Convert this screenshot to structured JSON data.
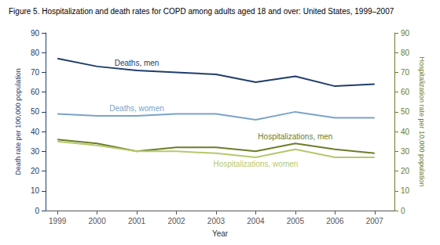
{
  "chart_data": {
    "type": "line",
    "title": "Figure 5. Hospitalization and death rates for COPD among adults aged 18 and over: United States, 1999–2007",
    "xlabel": "Year",
    "ylabel": "Death rate per 100,000 population",
    "y2label": "Hospitalization rate per 10,000 population",
    "x": [
      1999,
      2000,
      2001,
      2002,
      2003,
      2004,
      2005,
      2006,
      2007
    ],
    "xlim": [
      1998.7,
      2007.5
    ],
    "xticks": [
      1999,
      2000,
      2001,
      2002,
      2003,
      2004,
      2005,
      2006,
      2007
    ],
    "ylim": [
      0,
      90
    ],
    "yticks": [
      0,
      10,
      20,
      30,
      40,
      50,
      60,
      70,
      80,
      90
    ],
    "y2lim": [
      0,
      90
    ],
    "y2ticks": [
      0,
      10,
      20,
      30,
      40,
      50,
      60,
      70,
      80,
      90
    ],
    "grid": false,
    "series": [
      {
        "name": "Deaths, men",
        "color": "#1f3d6b",
        "values": [
          77,
          73,
          71,
          70,
          69,
          65,
          68,
          63,
          64
        ]
      },
      {
        "name": "Deaths, women",
        "color": "#7ba3c8",
        "values": [
          49,
          48,
          48,
          49,
          49,
          46,
          50,
          47,
          47
        ]
      },
      {
        "name": "Hospitalizations, men",
        "color": "#6b7d2b",
        "values": [
          36,
          34,
          30,
          32,
          32,
          30,
          34,
          31,
          29
        ],
        "axis": "y2"
      },
      {
        "name": "Hospitalizations, women",
        "color": "#b5c96b",
        "values": [
          35,
          33,
          30,
          30,
          29,
          27,
          31,
          27,
          27
        ],
        "axis": "y2"
      }
    ]
  }
}
